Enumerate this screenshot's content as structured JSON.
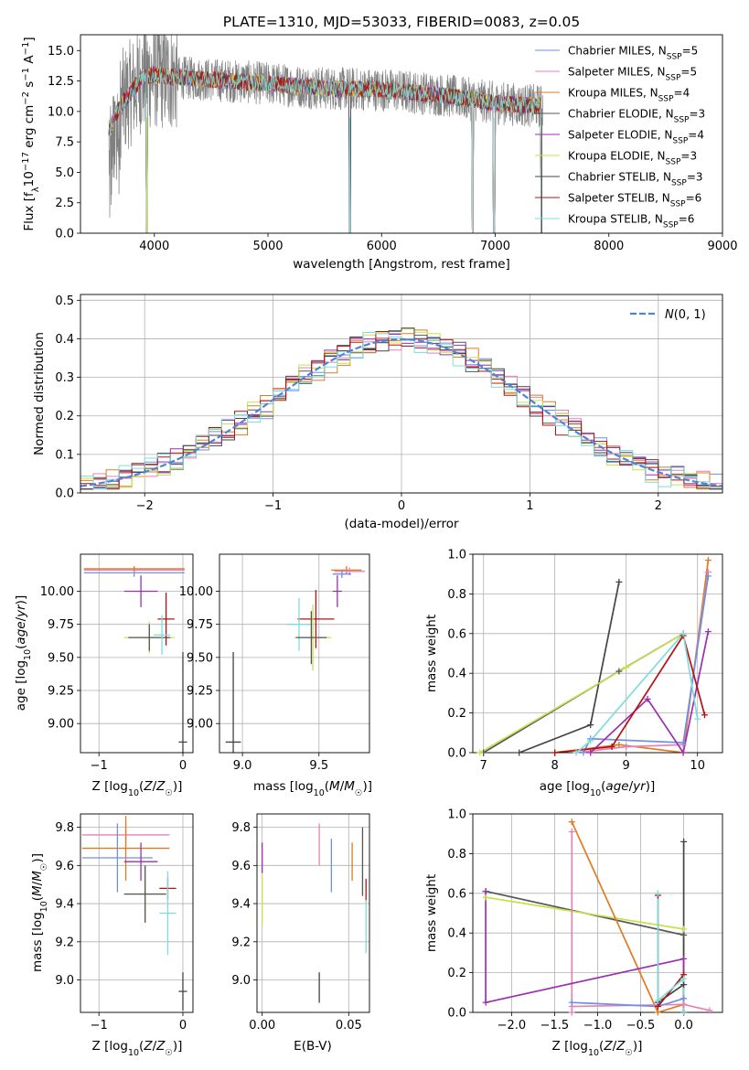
{
  "colors": {
    "series": [
      "#6f8fe6",
      "#e880b8",
      "#e07b20",
      "#555555",
      "#9b2fb0",
      "#c8e04a",
      "#444444",
      "#b81010",
      "#7fdcdc"
    ],
    "normal": "#4f83d6",
    "grid": "#b0b0b0",
    "spectrum_gray": "#808080"
  },
  "legend_ssp": [
    {
      "label": "Chabrier MILES, N",
      "sub": "SSP",
      "suffix": "=5"
    },
    {
      "label": "Salpeter MILES, N",
      "sub": "SSP",
      "suffix": "=5"
    },
    {
      "label": "Kroupa MILES, N",
      "sub": "SSP",
      "suffix": "=4"
    },
    {
      "label": "Chabrier ELODIE, N",
      "sub": "SSP",
      "suffix": "=3"
    },
    {
      "label": "Salpeter ELODIE, N",
      "sub": "SSP",
      "suffix": "=4"
    },
    {
      "label": "Kroupa ELODIE, N",
      "sub": "SSP",
      "suffix": "=3"
    },
    {
      "label": "Chabrier STELIB, N",
      "sub": "SSP",
      "suffix": "=3"
    },
    {
      "label": "Salpeter STELIB, N",
      "sub": "SSP",
      "suffix": "=6"
    },
    {
      "label": "Kroupa STELIB, N",
      "sub": "SSP",
      "suffix": "=6"
    }
  ],
  "chart_data": [
    {
      "id": "spectrum",
      "type": "line",
      "title": "PLATE=1310, MJD=53033, FIBERID=0083, z=0.05",
      "xlabel": "wavelength [Angstrom, rest frame]",
      "ylabel": "Flux [f_λ 10^-17 erg cm^-2 s^-1 A^-1]",
      "xlim": [
        3350,
        9000
      ],
      "ylim": [
        0,
        16.3
      ],
      "xticks": [
        4000,
        5000,
        6000,
        7000,
        8000,
        9000
      ],
      "yticks": [
        0.0,
        2.5,
        5.0,
        7.5,
        10.0,
        12.5,
        15.0
      ],
      "ytick_labels": [
        "0.0",
        "2.5",
        "5.0",
        "7.5",
        "10.0",
        "12.5",
        "15.0"
      ],
      "data_x_range": [
        3600,
        7420
      ],
      "continuum": [
        [
          3600,
          8.5
        ],
        [
          3700,
          10.5
        ],
        [
          3900,
          12.8
        ],
        [
          4000,
          13.0
        ],
        [
          4200,
          12.8
        ],
        [
          4500,
          12.6
        ],
        [
          5000,
          12.3
        ],
        [
          5500,
          11.9
        ],
        [
          6000,
          11.8
        ],
        [
          6500,
          11.4
        ],
        [
          7000,
          10.7
        ],
        [
          7420,
          10.4
        ]
      ],
      "dips": [
        [
          3934,
          0
        ],
        [
          5720,
          0
        ],
        [
          6800,
          0
        ],
        [
          6990,
          0
        ],
        [
          7410,
          0
        ]
      ],
      "legend": "series"
    },
    {
      "id": "residuals",
      "type": "histogram",
      "xlabel": "(data-model)/error",
      "ylabel": "Normed distribution",
      "xlim": [
        -2.5,
        2.5
      ],
      "ylim": [
        0,
        0.515
      ],
      "xticks": [
        -2,
        -1,
        0,
        1,
        2
      ],
      "xtick_labels": [
        "−2",
        "−1",
        "0",
        "1",
        "2"
      ],
      "yticks": [
        0.0,
        0.1,
        0.2,
        0.3,
        0.4,
        0.5
      ],
      "ytick_labels": [
        "0.0",
        "0.1",
        "0.2",
        "0.3",
        "0.4",
        "0.5"
      ],
      "bin_width": 0.1,
      "legend_label": "N(0,1)"
    },
    {
      "id": "age_vs_Z",
      "type": "errorbar",
      "xlabel": "Z [log10(Z/Z☉)]",
      "ylabel": "age  [log10(age/yr)]",
      "xlim": [
        -1.22,
        0.12
      ],
      "ylim": [
        8.78,
        10.28
      ],
      "xticks": [
        -1,
        0
      ],
      "xtick_labels": [
        "−1",
        "0"
      ],
      "yticks": [
        9.0,
        9.25,
        9.5,
        9.75,
        10.0
      ],
      "ytick_labels": [
        "9.00",
        "9.25",
        "9.50",
        "9.75",
        "10.00"
      ],
      "points": [
        {
          "s": 0,
          "x": -0.58,
          "xe": 0.6,
          "y": 10.14,
          "ye": 0.03
        },
        {
          "s": 1,
          "x": -0.58,
          "xe": 0.6,
          "y": 10.16,
          "ye": 0.02
        },
        {
          "s": 2,
          "x": -0.58,
          "xe": 0.6,
          "y": 10.17,
          "ye": 0.02
        },
        {
          "s": 4,
          "x": -0.5,
          "xe": 0.2,
          "y": 10.0,
          "ye": 0.12
        },
        {
          "s": 5,
          "x": -0.4,
          "xe": 0.3,
          "y": 9.65,
          "ye": 0.12
        },
        {
          "s": 3,
          "x": -0.4,
          "xe": 0.25,
          "y": 9.65,
          "ye": 0.1
        },
        {
          "s": 7,
          "x": -0.2,
          "xe": 0.1,
          "y": 9.79,
          "ye": 0.2
        },
        {
          "s": 8,
          "x": -0.25,
          "xe": 0.1,
          "y": 9.67,
          "ye": 0.15
        },
        {
          "s": 6,
          "x": 0.0,
          "xe": 0.05,
          "y": 8.86,
          "ye": 0.68
        }
      ]
    },
    {
      "id": "age_vs_mass",
      "type": "errorbar",
      "xlabel": "mass [log10(M/M☉)]",
      "ylabel": "",
      "xlim": [
        8.85,
        9.83
      ],
      "ylim": [
        8.78,
        10.28
      ],
      "xticks": [
        9.0,
        9.5
      ],
      "xtick_labels": [
        "9.0",
        "9.5"
      ],
      "yticks": [
        9.0,
        9.25,
        9.5,
        9.75,
        10.0
      ],
      "ytick_labels": [
        "9.00",
        "9.25",
        "9.50",
        "9.75",
        "10.00"
      ],
      "points": [
        {
          "s": 2,
          "x": 9.68,
          "xe": 0.1,
          "y": 10.16,
          "ye": 0.03
        },
        {
          "s": 1,
          "x": 9.7,
          "xe": 0.1,
          "y": 10.15,
          "ye": 0.03
        },
        {
          "s": 0,
          "x": 9.65,
          "xe": 0.06,
          "y": 10.13,
          "ye": 0.03
        },
        {
          "s": 4,
          "x": 9.62,
          "xe": 0.03,
          "y": 10.0,
          "ye": 0.12
        },
        {
          "s": 7,
          "x": 9.48,
          "xe": 0.12,
          "y": 9.79,
          "ye": 0.22
        },
        {
          "s": 8,
          "x": 9.37,
          "xe": 0.08,
          "y": 9.75,
          "ye": 0.2
        },
        {
          "s": 5,
          "x": 9.46,
          "xe": 0.12,
          "y": 9.65,
          "ye": 0.25
        },
        {
          "s": 3,
          "x": 9.45,
          "xe": 0.1,
          "y": 9.65,
          "ye": 0.2
        },
        {
          "s": 6,
          "x": 8.94,
          "xe": 0.05,
          "y": 8.86,
          "ye": 0.68
        }
      ]
    },
    {
      "id": "weight_vs_age",
      "type": "line",
      "xlabel": "age  [log10(age/yr)]",
      "ylabel": "mass weight",
      "xlim": [
        6.85,
        10.35
      ],
      "ylim": [
        0,
        1.0
      ],
      "xticks": [
        7,
        8,
        9,
        10
      ],
      "xtick_labels": [
        "7",
        "8",
        "9",
        "10"
      ],
      "yticks": [
        0.0,
        0.2,
        0.4,
        0.6,
        0.8,
        1.0
      ],
      "ytick_labels": [
        "0.0",
        "0.2",
        "0.4",
        "0.6",
        "0.8",
        "1.0"
      ],
      "series": [
        {
          "s": 6,
          "points": [
            [
              7.5,
              0.0
            ],
            [
              8.5,
              0.14
            ],
            [
              8.9,
              0.86
            ]
          ]
        },
        {
          "s": 3,
          "points": [
            [
              7.0,
              0.0
            ],
            [
              8.9,
              0.41
            ],
            [
              9.8,
              0.6
            ]
          ]
        },
        {
          "s": 5,
          "points": [
            [
              6.95,
              0.0
            ],
            [
              9.0,
              0.43
            ],
            [
              9.8,
              0.6
            ]
          ]
        },
        {
          "s": 2,
          "points": [
            [
              8.0,
              0.0
            ],
            [
              8.9,
              0.04
            ],
            [
              9.8,
              0.0
            ],
            [
              10.15,
              0.97
            ]
          ]
        },
        {
          "s": 1,
          "points": [
            [
              8.3,
              0.0
            ],
            [
              9.0,
              0.03
            ],
            [
              9.8,
              0.04
            ],
            [
              10.15,
              0.91
            ]
          ]
        },
        {
          "s": 0,
          "points": [
            [
              8.4,
              0.0
            ],
            [
              8.5,
              0.07
            ],
            [
              9.8,
              0.05
            ],
            [
              10.15,
              0.89
            ]
          ]
        },
        {
          "s": 4,
          "points": [
            [
              8.5,
              0.0
            ],
            [
              9.3,
              0.27
            ],
            [
              9.8,
              0.0
            ],
            [
              10.15,
              0.61
            ]
          ]
        },
        {
          "s": 7,
          "points": [
            [
              8.0,
              0.0
            ],
            [
              8.8,
              0.03
            ],
            [
              9.8,
              0.59
            ],
            [
              10.1,
              0.19
            ]
          ]
        },
        {
          "s": 8,
          "points": [
            [
              8.3,
              0.0
            ],
            [
              8.5,
              0.06
            ],
            [
              9.8,
              0.6
            ],
            [
              10.0,
              0.17
            ]
          ]
        }
      ]
    },
    {
      "id": "mass_vs_Z",
      "type": "errorbar",
      "xlabel": "Z [log10(Z/Z☉)]",
      "ylabel": "mass [log10(M/M☉)]",
      "xlim": [
        -1.22,
        0.12
      ],
      "ylim": [
        8.83,
        9.87
      ],
      "xticks": [
        -1,
        0
      ],
      "xtick_labels": [
        "−1",
        "0"
      ],
      "yticks": [
        9.0,
        9.2,
        9.4,
        9.6,
        9.8
      ],
      "ytick_labels": [
        "9.0",
        "9.2",
        "9.4",
        "9.6",
        "9.8"
      ],
      "points": [
        {
          "s": 1,
          "x": -0.68,
          "xe": 0.52,
          "y": 9.76,
          "ye": 0.06
        },
        {
          "s": 2,
          "x": -0.68,
          "xe": 0.52,
          "y": 9.69,
          "ye": 0.17
        },
        {
          "s": 0,
          "x": -0.78,
          "xe": 0.42,
          "y": 9.64,
          "ye": 0.18
        },
        {
          "s": 4,
          "x": -0.5,
          "xe": 0.2,
          "y": 9.62,
          "ye": 0.1
        },
        {
          "s": 5,
          "x": -0.45,
          "xe": 0.25,
          "y": 9.45,
          "ye": 0.15
        },
        {
          "s": 3,
          "x": -0.45,
          "xe": 0.25,
          "y": 9.45,
          "ye": 0.15
        },
        {
          "s": 7,
          "x": -0.18,
          "xe": 0.1,
          "y": 9.48,
          "ye": 0.06
        },
        {
          "s": 8,
          "x": -0.18,
          "xe": 0.1,
          "y": 9.35,
          "ye": 0.22
        },
        {
          "s": 6,
          "x": 0.0,
          "xe": 0.05,
          "y": 8.94,
          "ye": 0.1
        }
      ]
    },
    {
      "id": "mass_vs_EBV",
      "type": "errorbar",
      "xlabel": "E(B-V)",
      "ylabel": "",
      "xlim": [
        -0.003,
        0.062
      ],
      "ylim": [
        8.83,
        9.87
      ],
      "xticks": [
        0.0,
        0.05
      ],
      "xtick_labels": [
        "0.00",
        "0.05"
      ],
      "yticks": [
        9.0,
        9.2,
        9.4,
        9.6,
        9.8
      ],
      "ytick_labels": [
        "9.0",
        "9.2",
        "9.4",
        "9.6",
        "9.8"
      ],
      "points": [
        {
          "s": 4,
          "x": 0.0,
          "xe": 0,
          "y": 9.64,
          "ye": 0.08
        },
        {
          "s": 5,
          "x": 0.0,
          "xe": 0,
          "y": 9.42,
          "ye": 0.13
        },
        {
          "s": 6,
          "x": 0.033,
          "xe": 0,
          "y": 8.96,
          "ye": 0.08
        },
        {
          "s": 1,
          "x": 0.033,
          "xe": 0,
          "y": 9.71,
          "ye": 0.11
        },
        {
          "s": 0,
          "x": 0.04,
          "xe": 0,
          "y": 9.6,
          "ye": 0.14
        },
        {
          "s": 2,
          "x": 0.052,
          "xe": 0,
          "y": 9.62,
          "ye": 0.1
        },
        {
          "s": 3,
          "x": 0.058,
          "xe": 0,
          "y": 9.62,
          "ye": 0.18
        },
        {
          "s": 7,
          "x": 0.06,
          "xe": 0,
          "y": 9.47,
          "ye": 0.06
        },
        {
          "s": 8,
          "x": 0.06,
          "xe": 0,
          "y": 9.28,
          "ye": 0.14
        }
      ]
    },
    {
      "id": "weight_vs_Z",
      "type": "line",
      "xlabel": "Z [log10(Z/Z☉)]",
      "ylabel": "mass weight",
      "xlim": [
        -2.45,
        0.45
      ],
      "ylim": [
        0,
        1.0
      ],
      "xticks": [
        -2.0,
        -1.5,
        -1.0,
        -0.5,
        0.0
      ],
      "xtick_labels": [
        "−2.0",
        "−1.5",
        "−1.0",
        "−0.5",
        "0.0"
      ],
      "yticks": [
        0.0,
        0.2,
        0.4,
        0.6,
        0.8,
        1.0
      ],
      "ytick_labels": [
        "0.0",
        "0.2",
        "0.4",
        "0.6",
        "0.8",
        "1.0"
      ],
      "series": [
        {
          "s": 3,
          "points": [
            [
              -2.3,
              0.61
            ],
            [
              0.0,
              0.39
            ],
            [
              0.0,
              0.0
            ]
          ]
        },
        {
          "s": 5,
          "points": [
            [
              -2.3,
              0.58
            ],
            [
              0.0,
              0.42
            ],
            [
              0.0,
              0.0
            ]
          ]
        },
        {
          "s": 6,
          "points": [
            [
              -0.3,
              0.05
            ],
            [
              0.0,
              0.14
            ],
            [
              0.0,
              0.86
            ]
          ]
        },
        {
          "s": 2,
          "points": [
            [
              -1.3,
              0.96
            ],
            [
              -0.3,
              0.0
            ],
            [
              0.0,
              0.04
            ],
            [
              0.0,
              0.0
            ]
          ]
        },
        {
          "s": 1,
          "points": [
            [
              -1.3,
              0.0
            ],
            [
              -1.3,
              0.91
            ],
            [
              -1.3,
              0.03
            ],
            [
              0.0,
              0.04
            ],
            [
              0.3,
              0.01
            ]
          ]
        },
        {
          "s": 0,
          "points": [
            [
              -1.3,
              0.05
            ],
            [
              -0.3,
              0.03
            ],
            [
              0.0,
              0.07
            ],
            [
              0.0,
              0.0
            ]
          ]
        },
        {
          "s": 4,
          "points": [
            [
              -2.3,
              0.61
            ],
            [
              -2.3,
              0.05
            ],
            [
              0.0,
              0.27
            ],
            [
              0.0,
              0.0
            ]
          ]
        },
        {
          "s": 7,
          "points": [
            [
              -0.3,
              0.59
            ],
            [
              -0.3,
              0.03
            ],
            [
              0.0,
              0.19
            ],
            [
              0.0,
              0.0
            ]
          ]
        },
        {
          "s": 8,
          "points": [
            [
              -0.3,
              0.6
            ],
            [
              -0.3,
              0.06
            ],
            [
              0.0,
              0.17
            ],
            [
              0.0,
              0.0
            ]
          ]
        }
      ]
    }
  ]
}
